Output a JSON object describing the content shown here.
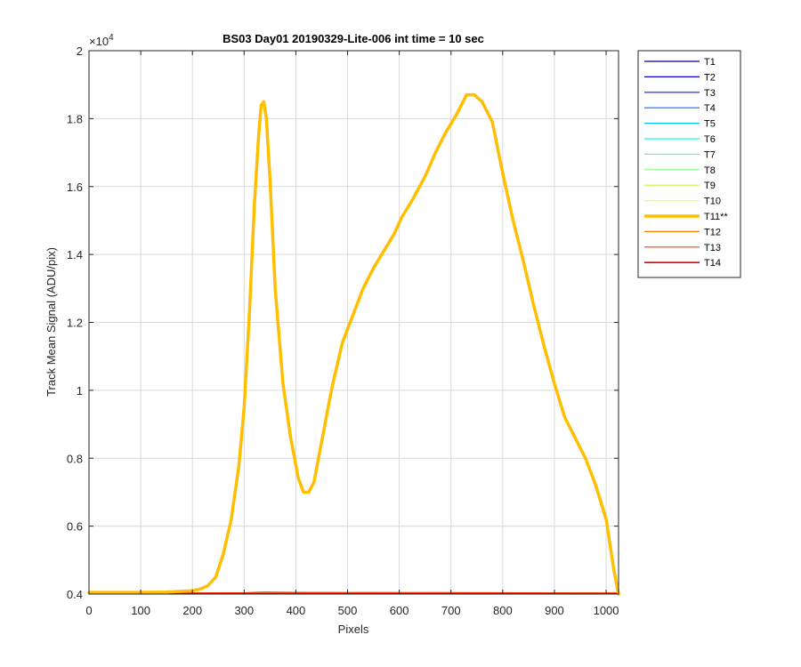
{
  "chart_data": {
    "type": "line",
    "title": "BS03 Day01 20190329-Lite-006 int time = 10 sec",
    "xlabel": "Pixels",
    "ylabel": "Track Mean Signal (ADU/pix)",
    "y_exponent_label": "×10",
    "y_exponent_power": "4",
    "xlim": [
      0,
      1024
    ],
    "ylim": [
      0.4,
      2.0
    ],
    "y_scale_note": "values shown in units of 1e4",
    "grid": true,
    "legend_position": "outside-right",
    "x_ticks": [
      0,
      100,
      200,
      300,
      400,
      500,
      600,
      700,
      800,
      900,
      1000
    ],
    "x_tick_labels": [
      "0",
      "100",
      "200",
      "300",
      "400",
      "500",
      "600",
      "700",
      "800",
      "900",
      "1000"
    ],
    "y_ticks": [
      0.4,
      0.6,
      0.8,
      1.0,
      1.2,
      1.4,
      1.6,
      1.8,
      2.0
    ],
    "y_tick_labels": [
      "0.4",
      "0.6",
      "0.8",
      "1",
      "1.2",
      "1.4",
      "1.6",
      "1.8",
      "2"
    ],
    "series": [
      {
        "name": "T1",
        "color": "#00008f",
        "width": 1.2,
        "x": [
          0,
          1024
        ],
        "y": [
          0.402,
          0.402
        ]
      },
      {
        "name": "T2",
        "color": "#0000d6",
        "width": 1.2,
        "x": [
          0,
          1024
        ],
        "y": [
          0.402,
          0.402
        ]
      },
      {
        "name": "T3",
        "color": "#0020ff",
        "width": 1.2,
        "x": [
          0,
          1024
        ],
        "y": [
          0.402,
          0.402
        ]
      },
      {
        "name": "T4",
        "color": "#0070ff",
        "width": 1.2,
        "x": [
          0,
          1024
        ],
        "y": [
          0.402,
          0.402
        ]
      },
      {
        "name": "T5",
        "color": "#00bfff",
        "width": 1.2,
        "x": [
          0,
          1024
        ],
        "y": [
          0.402,
          0.402
        ]
      },
      {
        "name": "T6",
        "color": "#10ffef",
        "width": 1.2,
        "x": [
          0,
          1024
        ],
        "y": [
          0.402,
          0.402
        ]
      },
      {
        "name": "T7",
        "color": "#60ffa0",
        "width": 1.2,
        "x": [
          0,
          1024
        ],
        "y": [
          0.402,
          0.402
        ]
      },
      {
        "name": "T8",
        "color": "#80ff80",
        "width": 1.2,
        "x": [
          0,
          1024
        ],
        "y": [
          0.402,
          0.402
        ]
      },
      {
        "name": "T9",
        "color": "#bfff40",
        "width": 1.2,
        "x": [
          0,
          1024
        ],
        "y": [
          0.402,
          0.402
        ]
      },
      {
        "name": "T10",
        "color": "#ffff20",
        "width": 1.2,
        "x": [
          0,
          1024
        ],
        "y": [
          0.402,
          0.402
        ]
      },
      {
        "name": "T11**",
        "color": "#ffbf00",
        "width": 3.5,
        "x": [
          0,
          100,
          150,
          200,
          215,
          230,
          245,
          260,
          275,
          290,
          300,
          310,
          320,
          328,
          333,
          338,
          343,
          350,
          360,
          375,
          390,
          405,
          415,
          425,
          435,
          450,
          470,
          490,
          510,
          530,
          550,
          570,
          590,
          605,
          625,
          650,
          670,
          690,
          710,
          720,
          730,
          745,
          760,
          780,
          800,
          820,
          840,
          860,
          880,
          900,
          920,
          940,
          960,
          980,
          1000,
          1015,
          1024
        ],
        "y": [
          0.405,
          0.405,
          0.406,
          0.41,
          0.415,
          0.425,
          0.45,
          0.52,
          0.62,
          0.78,
          0.95,
          1.22,
          1.55,
          1.75,
          1.84,
          1.85,
          1.8,
          1.62,
          1.3,
          1.02,
          0.86,
          0.74,
          0.7,
          0.7,
          0.73,
          0.85,
          1.01,
          1.14,
          1.22,
          1.3,
          1.36,
          1.41,
          1.46,
          1.51,
          1.56,
          1.63,
          1.7,
          1.76,
          1.81,
          1.84,
          1.87,
          1.87,
          1.85,
          1.79,
          1.64,
          1.5,
          1.38,
          1.25,
          1.13,
          1.02,
          0.92,
          0.86,
          0.8,
          0.72,
          0.62,
          0.47,
          0.4
        ]
      },
      {
        "name": "T12",
        "color": "#ff7f00",
        "width": 1.2,
        "x": [
          0,
          1024
        ],
        "y": [
          0.403,
          0.404
        ]
      },
      {
        "name": "T13",
        "color": "#ff4000",
        "width": 1.2,
        "x": [
          0,
          300,
          340,
          400,
          800,
          1024
        ],
        "y": [
          0.402,
          0.404,
          0.406,
          0.405,
          0.404,
          0.402
        ]
      },
      {
        "name": "T14",
        "color": "#e60000",
        "width": 1.6,
        "x": [
          0,
          1024
        ],
        "y": [
          0.401,
          0.401
        ]
      }
    ]
  }
}
